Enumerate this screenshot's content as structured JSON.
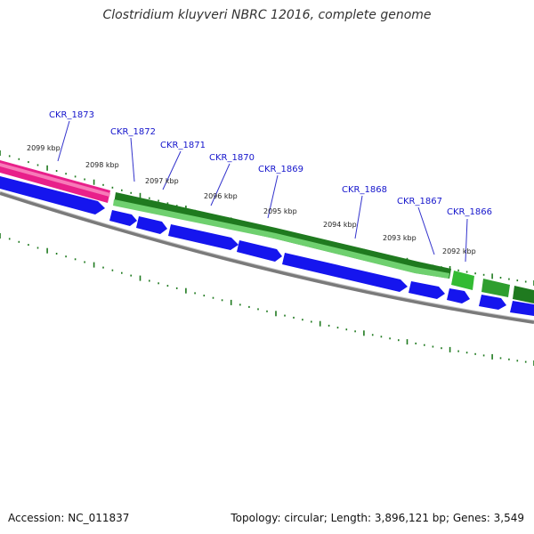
{
  "title": "Clostridium kluyveri NBRC 12016, complete genome",
  "footer": {
    "accession": "Accession: NC_011837",
    "summary": "Topology: circular; Length: 3,896,121 bp; Genes: 3,549"
  },
  "colors": {
    "gene_label": "#1515cc",
    "blue_feature": "#1515ee",
    "green_feature": "#2f9e2f",
    "pink_feature": "#e8208a",
    "tick": "#1f7a1f",
    "backbone": "#808080"
  },
  "kbp_labels": [
    "2099 kbp",
    "2098 kbp",
    "2097 kbp",
    "2096 kbp",
    "2095 kbp",
    "2094 kbp",
    "2093 kbp",
    "2092 kbp"
  ],
  "genes": [
    {
      "label": "CKR_1873"
    },
    {
      "label": "CKR_1872"
    },
    {
      "label": "CKR_1871"
    },
    {
      "label": "CKR_1870"
    },
    {
      "label": "CKR_1869"
    },
    {
      "label": "CKR_1868"
    },
    {
      "label": "CKR_1867"
    },
    {
      "label": "CKR_1866"
    }
  ]
}
